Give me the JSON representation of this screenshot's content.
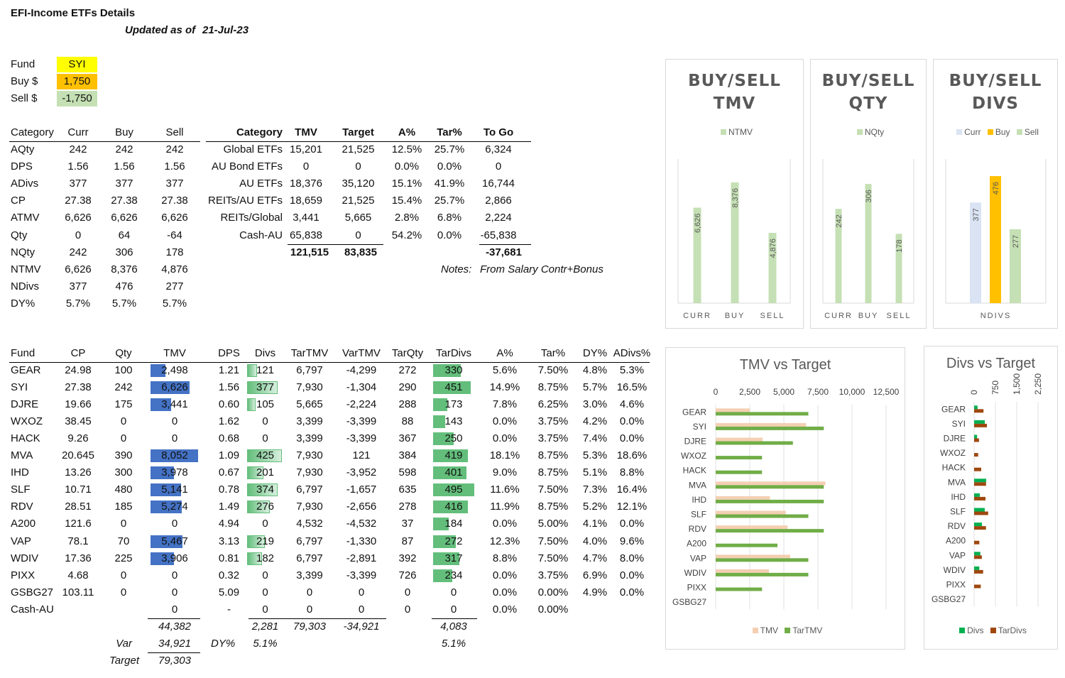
{
  "title": "EFI-Income ETFs Details",
  "updated_label": "Updated as of",
  "updated_date": "21-Jul-23",
  "fund_box": {
    "fund_label": "Fund",
    "fund_value": "SYI",
    "buy_label": "Buy $",
    "buy_value": "1,750",
    "sell_label": "Sell $",
    "sell_value": "-1,750"
  },
  "summary": {
    "headers": [
      "Category",
      "Curr",
      "Buy",
      "Sell"
    ],
    "rows": [
      [
        "AQty",
        "242",
        "242",
        "242"
      ],
      [
        "DPS",
        "1.56",
        "1.56",
        "1.56"
      ],
      [
        "ADivs",
        "377",
        "377",
        "377"
      ],
      [
        "CP",
        "27.38",
        "27.38",
        "27.38"
      ],
      [
        "ATMV",
        "6,626",
        "6,626",
        "6,626"
      ],
      [
        "Qty",
        "0",
        "64",
        "-64"
      ],
      [
        "NQty",
        "242",
        "306",
        "178"
      ],
      [
        "NTMV",
        "6,626",
        "8,376",
        "4,876"
      ],
      [
        "NDivs",
        "377",
        "476",
        "277"
      ],
      [
        "DY%",
        "5.7%",
        "5.7%",
        "5.7%"
      ]
    ]
  },
  "category": {
    "headers": [
      "Category",
      "TMV",
      "Target",
      "A%",
      "Tar%",
      "To Go"
    ],
    "rows": [
      [
        "Global ETFs",
        "15,201",
        "21,525",
        "12.5%",
        "25.7%",
        "6,324"
      ],
      [
        "AU Bond ETFs",
        "0",
        "0",
        "0.0%",
        "0.0%",
        "0"
      ],
      [
        "AU ETFs",
        "18,376",
        "35,120",
        "15.1%",
        "41.9%",
        "16,744"
      ],
      [
        "REITs/AU ETFs",
        "18,659",
        "21,525",
        "15.4%",
        "25.7%",
        "2,866"
      ],
      [
        "REITs/Global",
        "3,441",
        "5,665",
        "2.8%",
        "6.8%",
        "2,224"
      ],
      [
        "Cash-AU",
        "65,838",
        "0",
        "54.2%",
        "0.0%",
        "-65,838"
      ]
    ],
    "totals": {
      "tmv": "121,515",
      "target": "83,835",
      "togo": "-37,681"
    },
    "notes_label": "Notes:",
    "notes_text": "From Salary Contr+Bonus"
  },
  "funds": {
    "headers": [
      "Fund",
      "CP",
      "Qty",
      "TMV",
      "DPS",
      "Divs",
      "TarTMV",
      "VarTMV",
      "TarQty",
      "TarDivs",
      "A%",
      "Tar%",
      "DY%",
      "ADivs%"
    ],
    "rows": [
      [
        "GEAR",
        "24.98",
        "100",
        "2,498",
        "1.21",
        "121",
        "6,797",
        "-4,299",
        "272",
        "330",
        "5.6%",
        "7.50%",
        "4.8%",
        "5.3%"
      ],
      [
        "SYI",
        "27.38",
        "242",
        "6,626",
        "1.56",
        "377",
        "7,930",
        "-1,304",
        "290",
        "451",
        "14.9%",
        "8.75%",
        "5.7%",
        "16.5%"
      ],
      [
        "DJRE",
        "19.66",
        "175",
        "3,441",
        "0.60",
        "105",
        "5,665",
        "-2,224",
        "288",
        "173",
        "7.8%",
        "6.25%",
        "3.0%",
        "4.6%"
      ],
      [
        "WXOZ",
        "38.45",
        "0",
        "0",
        "1.62",
        "0",
        "3,399",
        "-3,399",
        "88",
        "143",
        "0.0%",
        "3.75%",
        "4.2%",
        "0.0%"
      ],
      [
        "HACK",
        "9.26",
        "0",
        "0",
        "0.68",
        "0",
        "3,399",
        "-3,399",
        "367",
        "250",
        "0.0%",
        "3.75%",
        "7.4%",
        "0.0%"
      ],
      [
        "MVA",
        "20.645",
        "390",
        "8,052",
        "1.09",
        "425",
        "7,930",
        "121",
        "384",
        "419",
        "18.1%",
        "8.75%",
        "5.3%",
        "18.6%"
      ],
      [
        "IHD",
        "13.26",
        "300",
        "3,978",
        "0.67",
        "201",
        "7,930",
        "-3,952",
        "598",
        "401",
        "9.0%",
        "8.75%",
        "5.1%",
        "8.8%"
      ],
      [
        "SLF",
        "10.71",
        "480",
        "5,141",
        "0.78",
        "374",
        "6,797",
        "-1,657",
        "635",
        "495",
        "11.6%",
        "7.50%",
        "7.3%",
        "16.4%"
      ],
      [
        "RDV",
        "28.51",
        "185",
        "5,274",
        "1.49",
        "276",
        "7,930",
        "-2,656",
        "278",
        "416",
        "11.9%",
        "8.75%",
        "5.2%",
        "12.1%"
      ],
      [
        "A200",
        "121.6",
        "0",
        "0",
        "4.94",
        "0",
        "4,532",
        "-4,532",
        "37",
        "184",
        "0.0%",
        "5.00%",
        "4.1%",
        "0.0%"
      ],
      [
        "VAP",
        "78.1",
        "70",
        "5,467",
        "3.13",
        "219",
        "6,797",
        "-1,330",
        "87",
        "272",
        "12.3%",
        "7.50%",
        "4.0%",
        "9.6%"
      ],
      [
        "WDIV",
        "17.36",
        "225",
        "3,906",
        "0.81",
        "182",
        "6,797",
        "-2,891",
        "392",
        "317",
        "8.8%",
        "7.50%",
        "4.7%",
        "8.0%"
      ],
      [
        "PIXX",
        "4.68",
        "0",
        "0",
        "0.32",
        "0",
        "3,399",
        "-3,399",
        "726",
        "234",
        "0.0%",
        "3.75%",
        "6.9%",
        "0.0%"
      ],
      [
        "GSBG27",
        "103.11",
        "0",
        "0",
        "5.09",
        "0",
        "0",
        "0",
        "0",
        "0",
        "0.0%",
        "0.00%",
        "4.9%",
        "0.0%"
      ],
      [
        "Cash-AU",
        "",
        "",
        "0",
        "-",
        "0",
        "0",
        "0",
        "0",
        "0",
        "0.0%",
        "0.00%",
        "",
        ""
      ]
    ],
    "totals": {
      "tmv": "44,382",
      "divs": "2,281",
      "tartmv": "79,303",
      "vartmv": "-34,921",
      "tardivs": "4,083"
    },
    "var_label": "Var",
    "var_value": "34,921",
    "dy_label": "DY%",
    "dy_value": "5.1%",
    "dy_tar": "5.1%",
    "target_label": "Target",
    "target_value": "79,303"
  },
  "colors": {
    "bar_blue": "#4472c4",
    "bar_green": "#63be7b",
    "light_green": "#c5e0b4",
    "gold": "#ffc000",
    "light_blue": "#dae3f3",
    "tan": "#f4cfb2",
    "dark_green": "#70ad47",
    "brown": "#9e480e",
    "yellow": "#ffff00",
    "orange": "#ffc000",
    "sellbg": "#c5e0b4"
  },
  "chart_data": [
    {
      "type": "bar",
      "title": "BUY/SELL TMV",
      "title_lines": [
        "BUY/SELL",
        "TMV"
      ],
      "categories": [
        "CURR",
        "BUY",
        "SELL"
      ],
      "series": [
        {
          "name": "NTMV",
          "values": [
            6626,
            8376,
            4876
          ]
        }
      ],
      "data_labels": [
        "6,626",
        "8,376",
        "4,876"
      ],
      "ylim": [
        0,
        10000
      ]
    },
    {
      "type": "bar",
      "title": "BUY/SELL QTY",
      "title_lines": [
        "BUY/SELL",
        "QTY"
      ],
      "categories": [
        "CURR",
        "BUY",
        "SELL"
      ],
      "series": [
        {
          "name": "NQty",
          "values": [
            242,
            306,
            178
          ]
        }
      ],
      "data_labels": [
        "242",
        "306",
        "178"
      ],
      "ylim": [
        0,
        370
      ]
    },
    {
      "type": "bar",
      "title": "BUY/SELL DIVS",
      "title_lines": [
        "BUY/SELL",
        "DIVS"
      ],
      "categories": [
        "NDIVS"
      ],
      "series": [
        {
          "name": "Curr",
          "values": [
            377
          ]
        },
        {
          "name": "Buy",
          "values": [
            476
          ]
        },
        {
          "name": "Sell",
          "values": [
            277
          ]
        }
      ],
      "data_labels": [
        "377",
        "476",
        "277"
      ],
      "ylim": [
        0,
        540
      ]
    },
    {
      "type": "bar",
      "title": "TMV vs Target",
      "orientation": "horizontal",
      "categories": [
        "GEAR",
        "SYI",
        "DJRE",
        "WXOZ",
        "HACK",
        "MVA",
        "IHD",
        "SLF",
        "RDV",
        "A200",
        "VAP",
        "WDIV",
        "PIXX",
        "GSBG27"
      ],
      "series": [
        {
          "name": "TMV",
          "values": [
            2498,
            6626,
            3441,
            0,
            0,
            8052,
            3978,
            5141,
            5274,
            0,
            5467,
            3906,
            0,
            0
          ]
        },
        {
          "name": "TarTMV",
          "values": [
            6797,
            7930,
            5665,
            3399,
            3399,
            7930,
            7930,
            6797,
            7930,
            4532,
            6797,
            6797,
            3399,
            0
          ]
        }
      ],
      "ticks": [
        "0",
        "2,500",
        "5,000",
        "7,500",
        "10,000",
        "12,500"
      ],
      "xlim": [
        0,
        12500
      ]
    },
    {
      "type": "bar",
      "title": "Divs vs Target",
      "orientation": "horizontal",
      "categories": [
        "GEAR",
        "SYI",
        "DJRE",
        "WXOZ",
        "HACK",
        "MVA",
        "IHD",
        "SLF",
        "RDV",
        "A200",
        "VAP",
        "WDIV",
        "PIXX",
        "GSBG27"
      ],
      "series": [
        {
          "name": "Divs",
          "values": [
            121,
            377,
            105,
            0,
            0,
            425,
            201,
            374,
            276,
            0,
            219,
            182,
            0,
            0
          ]
        },
        {
          "name": "TarDivs",
          "values": [
            330,
            451,
            173,
            143,
            250,
            419,
            401,
            495,
            416,
            184,
            272,
            317,
            234,
            0
          ]
        }
      ],
      "ticks": [
        "0",
        "750",
        "1,500",
        "2,250"
      ],
      "xlim": [
        0,
        2250
      ]
    }
  ]
}
